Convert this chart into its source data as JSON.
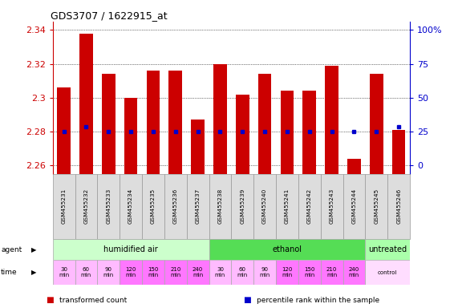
{
  "title": "GDS3707 / 1622915_at",
  "samples": [
    "GSM455231",
    "GSM455232",
    "GSM455233",
    "GSM455234",
    "GSM455235",
    "GSM455236",
    "GSM455237",
    "GSM455238",
    "GSM455239",
    "GSM455240",
    "GSM455241",
    "GSM455242",
    "GSM455243",
    "GSM455244",
    "GSM455245",
    "GSM455246"
  ],
  "bar_values": [
    2.306,
    2.338,
    2.314,
    2.3,
    2.316,
    2.316,
    2.287,
    2.32,
    2.302,
    2.314,
    2.304,
    2.304,
    2.319,
    2.264,
    2.314,
    2.281
  ],
  "dot_values": [
    2.28,
    2.283,
    2.28,
    2.28,
    2.28,
    2.28,
    2.28,
    2.28,
    2.28,
    2.28,
    2.28,
    2.28,
    2.28,
    2.28,
    2.28,
    2.283
  ],
  "ylim": [
    2.255,
    2.345
  ],
  "yticks": [
    2.26,
    2.28,
    2.3,
    2.32,
    2.34
  ],
  "ytick_labels": [
    "2.26",
    "2.28",
    "2.3",
    "2.32",
    "2.34"
  ],
  "bar_color": "#cc0000",
  "dot_color": "#0000cc",
  "bar_bottom": 2.255,
  "right_yticks": [
    2.26,
    2.28,
    2.3,
    2.32,
    2.34
  ],
  "right_ytick_labels": [
    "0",
    "25",
    "50",
    "75",
    "100%"
  ],
  "agent_row": [
    {
      "label": "humidified air",
      "start": 0,
      "end": 7,
      "color": "#ccffcc"
    },
    {
      "label": "ethanol",
      "start": 7,
      "end": 14,
      "color": "#55dd55"
    },
    {
      "label": "untreated",
      "start": 14,
      "end": 16,
      "color": "#aaffaa"
    }
  ],
  "time_row": [
    {
      "label": "30\nmin",
      "col": 0,
      "colspan": 1,
      "color": "#ffbbff"
    },
    {
      "label": "60\nmin",
      "col": 1,
      "colspan": 1,
      "color": "#ffbbff"
    },
    {
      "label": "90\nmin",
      "col": 2,
      "colspan": 1,
      "color": "#ffbbff"
    },
    {
      "label": "120\nmin",
      "col": 3,
      "colspan": 1,
      "color": "#ff77ff"
    },
    {
      "label": "150\nmin",
      "col": 4,
      "colspan": 1,
      "color": "#ff77ff"
    },
    {
      "label": "210\nmin",
      "col": 5,
      "colspan": 1,
      "color": "#ff77ff"
    },
    {
      "label": "240\nmin",
      "col": 6,
      "colspan": 1,
      "color": "#ff77ff"
    },
    {
      "label": "30\nmin",
      "col": 7,
      "colspan": 1,
      "color": "#ffbbff"
    },
    {
      "label": "60\nmin",
      "col": 8,
      "colspan": 1,
      "color": "#ffbbff"
    },
    {
      "label": "90\nmin",
      "col": 9,
      "colspan": 1,
      "color": "#ffbbff"
    },
    {
      "label": "120\nmin",
      "col": 10,
      "colspan": 1,
      "color": "#ff77ff"
    },
    {
      "label": "150\nmin",
      "col": 11,
      "colspan": 1,
      "color": "#ff77ff"
    },
    {
      "label": "210\nmin",
      "col": 12,
      "colspan": 1,
      "color": "#ff77ff"
    },
    {
      "label": "240\nmin",
      "col": 13,
      "colspan": 1,
      "color": "#ff77ff"
    },
    {
      "label": "control",
      "col": 14,
      "colspan": 2,
      "color": "#ffddff"
    }
  ],
  "legend_items": [
    {
      "color": "#cc0000",
      "label": "transformed count"
    },
    {
      "color": "#0000cc",
      "label": "percentile rank within the sample"
    }
  ],
  "bg_color": "#ffffff",
  "grid_color": "#000000",
  "label_color_left": "#cc0000",
  "label_color_right": "#0000cc",
  "sample_box_color": "#dddddd",
  "sample_box_edge": "#999999"
}
